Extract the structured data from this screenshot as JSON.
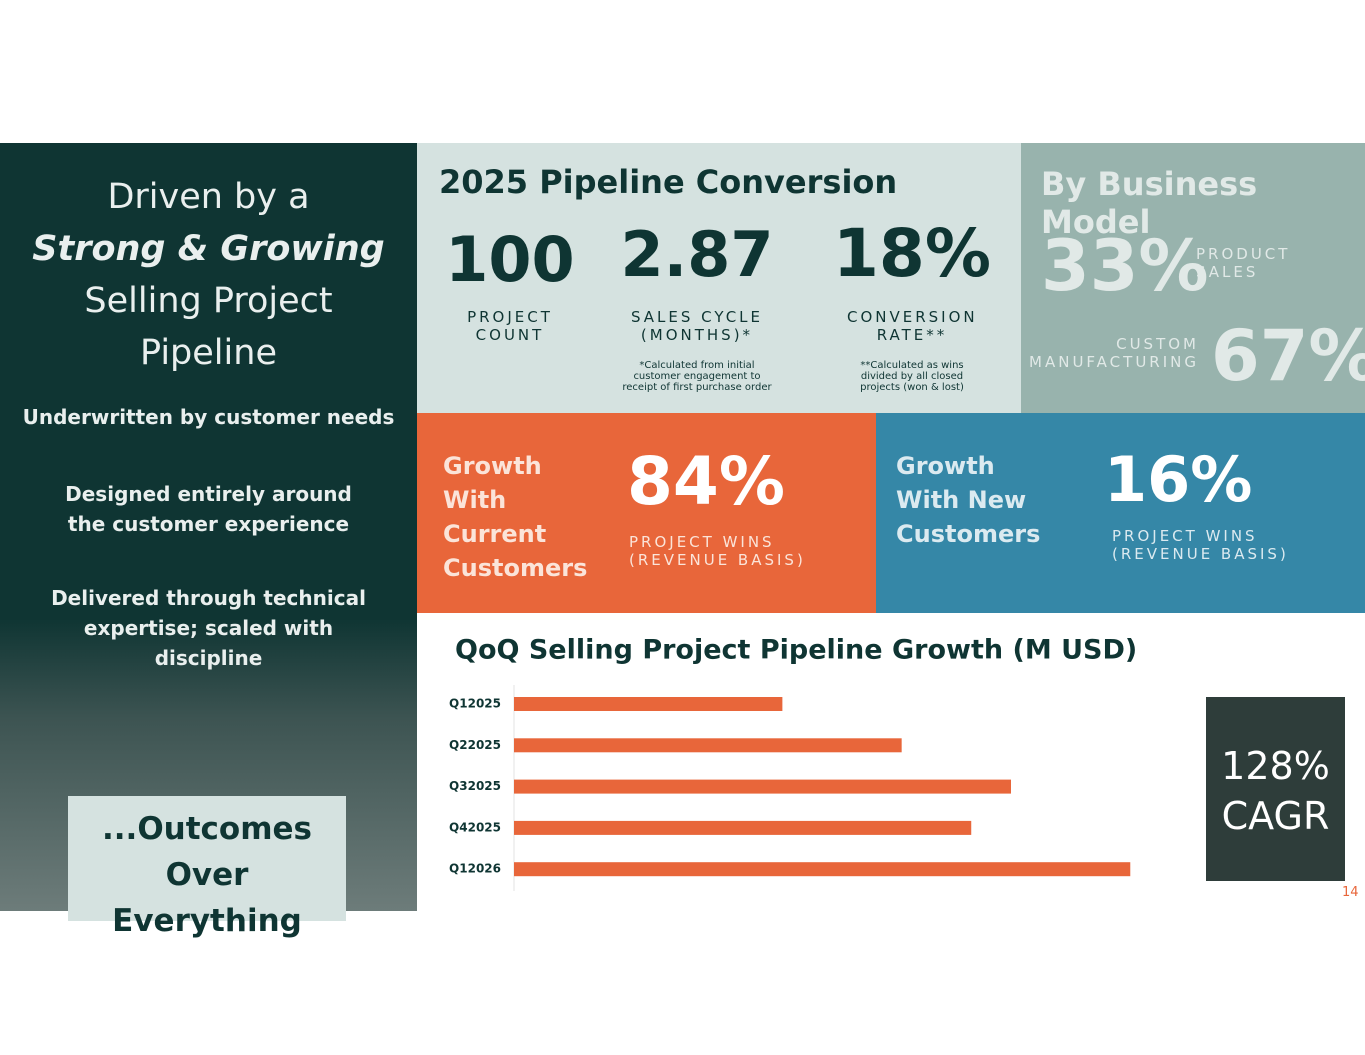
{
  "left": {
    "title_lines": [
      "Driven by a",
      "Strong & Growing",
      "Selling Project",
      "Pipeline"
    ],
    "points": [
      "Underwritten by customer needs",
      "Designed entirely around the customer experience",
      "Delivered through technical expertise; scaled with discipline"
    ],
    "callout": "...Outcomes Over Everything"
  },
  "pipeline": {
    "title": "2025 Pipeline Conversion",
    "metrics": [
      {
        "value": "100",
        "label": "PROJECT COUNT"
      },
      {
        "value": "2.87",
        "label": "SALES CYCLE (MONTHS)*",
        "note": "*Calculated from initial customer engagement to receipt of first purchase order"
      },
      {
        "value": "18%",
        "label": "CONVERSION RATE**",
        "note": "**Calculated as wins divided by all closed projects (won & lost)"
      }
    ]
  },
  "business_model": {
    "title": "By Business Model",
    "items": [
      {
        "value": "33%",
        "label": "PRODUCT SALES"
      },
      {
        "value": "67%",
        "label": "CUSTOM MANUFACTURING"
      }
    ]
  },
  "growth": [
    {
      "heading": "Growth With Current Customers",
      "value": "84%",
      "label": "PROJECT WINS (REVENUE BASIS)"
    },
    {
      "heading": "Growth With New Customers",
      "value": "16%",
      "label": "PROJECT WINS (REVENUE BASIS)"
    }
  ],
  "cagr": {
    "value": "128%",
    "label": "CAGR"
  },
  "page_number": "14",
  "chart_data": {
    "type": "bar",
    "title": "QoQ Selling Project Pipeline Growth (M USD)",
    "categories": [
      "Q12025",
      "Q22025",
      "Q32025",
      "Q42025",
      "Q12026"
    ],
    "values": [
      27,
      39,
      50,
      46,
      62
    ],
    "color": "#e8663a"
  }
}
